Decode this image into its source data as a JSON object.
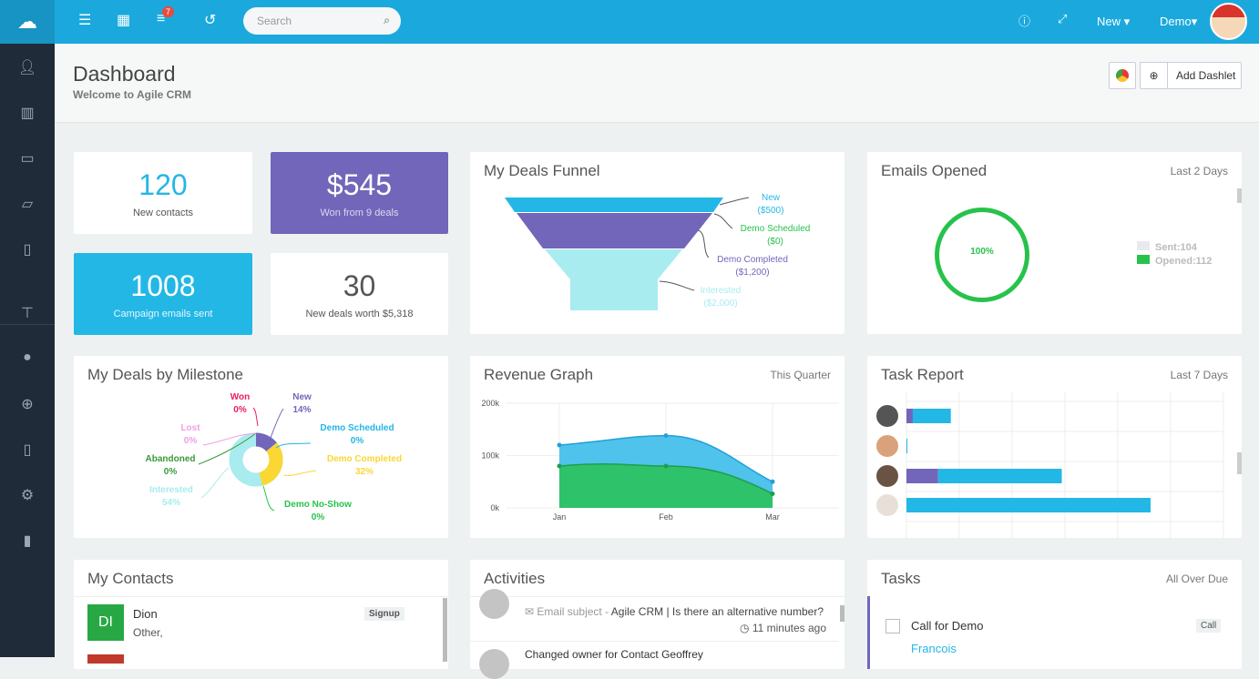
{
  "topbar": {
    "search_placeholder": "Search",
    "tasks_badge": "7",
    "new_label": "New",
    "user_label": "Demo",
    "icons": [
      "cloud-icon",
      "indent-icon",
      "calendar-icon",
      "tasks-icon",
      "history-icon",
      "search-icon",
      "help-icon",
      "expand-icon"
    ]
  },
  "sidebar": {
    "icons": [
      "user-icon",
      "building-icon",
      "money-icon",
      "folder-icon",
      "file-icon",
      "sitemap-icon",
      "comments-icon",
      "globe-icon",
      "code-file-icon",
      "gears-icon",
      "bar-chart-icon"
    ]
  },
  "header": {
    "title": "Dashboard",
    "subtitle": "Welcome to Agile CRM",
    "add_dashlet": "Add Dashlet"
  },
  "stats": [
    {
      "value": "120",
      "label": "New contacts"
    },
    {
      "value": "$545",
      "label": "Won from 9 deals"
    },
    {
      "value": "1008",
      "label": "Campaign emails sent"
    },
    {
      "value": "30",
      "label": "New deals worth $5,318"
    }
  ],
  "colors": {
    "blue": "#23b7e5",
    "purple": "#7266ba",
    "green": "#27c24c",
    "teal": "#a8ecef",
    "yellow": "#fad733",
    "topbar": "#1ba9dd",
    "sidebar": "#1f2b38"
  },
  "funnel": {
    "title": "My Deals Funnel",
    "stages": [
      {
        "name": "New",
        "value": "($500)",
        "color": "#23b7e5",
        "label_color": "#23b7e5"
      },
      {
        "name": "Demo Scheduled",
        "value": "($0)",
        "color": "#7266ba",
        "label_color": "#27c24c"
      },
      {
        "name": "Demo Completed",
        "value": "($1,200)",
        "color": "#a8ecef",
        "label_color": "#7266ba"
      },
      {
        "name": "Interested",
        "value": "($2,000)",
        "color": "#a8ecef",
        "label_color": "#a8ecef"
      }
    ]
  },
  "emails": {
    "title": "Emails Opened",
    "range": "Last 2 Days",
    "percent": "100%",
    "legend": [
      {
        "label": "Sent:104",
        "color": "#e8eaeb"
      },
      {
        "label": "Opened:112",
        "color": "#27c24c"
      }
    ]
  },
  "milestone": {
    "title": "My Deals by Milestone",
    "slices": [
      {
        "name": "Won",
        "pct": "0%",
        "value": 0,
        "color": "#e91e63"
      },
      {
        "name": "New",
        "pct": "14%",
        "value": 14,
        "color": "#7266ba"
      },
      {
        "name": "Demo Scheduled",
        "pct": "0%",
        "value": 0,
        "color": "#23b7e5"
      },
      {
        "name": "Demo Completed",
        "pct": "32%",
        "value": 32,
        "color": "#fad733"
      },
      {
        "name": "Demo No-Show",
        "pct": "0%",
        "value": 0,
        "color": "#27c24c"
      },
      {
        "name": "Interested",
        "pct": "54%",
        "value": 54,
        "color": "#a8ecef"
      },
      {
        "name": "Abandoned",
        "pct": "0%",
        "value": 0,
        "color": "#3a9a3a"
      },
      {
        "name": "Lost",
        "pct": "0%",
        "value": 0,
        "color": "#f09ee6"
      }
    ]
  },
  "chart_data": {
    "type": "area",
    "title": "Revenue Graph",
    "range": "This Quarter",
    "categories": [
      "Jan",
      "Feb",
      "Mar"
    ],
    "yticks": [
      "0k",
      "100k",
      "200k"
    ],
    "ylim": [
      0,
      200000
    ],
    "series": [
      {
        "values": [
          120000,
          138000,
          50000
        ],
        "color": "#4fc3ec"
      },
      {
        "values": [
          80000,
          80000,
          27000
        ],
        "color": "#2ec26a"
      }
    ]
  },
  "task_report": {
    "title": "Task Report",
    "range": "Last 7 Days",
    "rows": [
      {
        "purple": 2,
        "blue": 12
      },
      {
        "purple": 0,
        "blue": 0.3
      },
      {
        "purple": 10,
        "blue": 39
      },
      {
        "purple": 0,
        "blue": 77
      }
    ]
  },
  "contacts": {
    "title": "My Contacts",
    "items": [
      {
        "initials": "DI",
        "name": "Dion",
        "sub": "Other,",
        "tag": "Signup"
      }
    ]
  },
  "activities": {
    "title": "Activities",
    "items": [
      {
        "prefix": "Email subject - ",
        "text": "Agile CRM | Is there an alternative number?",
        "time": "11 minutes ago"
      },
      {
        "text": "Changed owner for Contact Geoffrey"
      }
    ]
  },
  "tasks": {
    "title": "Tasks",
    "range": "All Over Due",
    "items": [
      {
        "name": "Call for Demo",
        "tag": "Call",
        "contact": "Francois"
      }
    ]
  }
}
